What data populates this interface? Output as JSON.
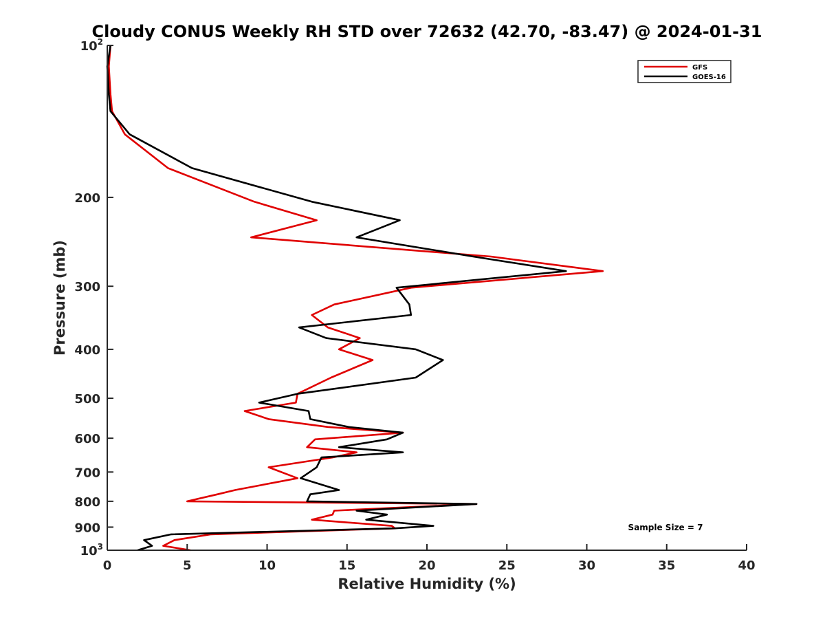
{
  "chart_data": {
    "type": "line",
    "title": "Cloudy CONUS Weekly RH STD over 72632 (42.70, -83.47) @ 2024-01-31",
    "xlabel": "Relative Humidity (%)",
    "ylabel": "Pressure (mb)",
    "xlim": [
      0,
      40
    ],
    "ylim": [
      100,
      1000
    ],
    "y_scale": "log",
    "y_reversed": true,
    "xticks": [
      0,
      5,
      10,
      15,
      20,
      25,
      30,
      35,
      40
    ],
    "yticks": [
      {
        "value": 100,
        "label": "10",
        "sup": "2"
      },
      {
        "value": 200,
        "label": "200"
      },
      {
        "value": 300,
        "label": "300"
      },
      {
        "value": 400,
        "label": "400"
      },
      {
        "value": 500,
        "label": "500"
      },
      {
        "value": 600,
        "label": "600"
      },
      {
        "value": 700,
        "label": "700"
      },
      {
        "value": 800,
        "label": "800"
      },
      {
        "value": 900,
        "label": "900"
      },
      {
        "value": 1000,
        "label": "10",
        "sup": "3"
      }
    ],
    "grid": false,
    "legend_position": "top-right",
    "annotation": "Sample Size = 7",
    "series": [
      {
        "name": "GFS",
        "color": "#e00000",
        "points": [
          [
            0.2,
            100
          ],
          [
            0.1,
            110
          ],
          [
            0.2,
            125
          ],
          [
            0.3,
            135
          ],
          [
            1.1,
            150
          ],
          [
            3.8,
            175
          ],
          [
            9.2,
            204
          ],
          [
            13.1,
            222
          ],
          [
            9.0,
            240
          ],
          [
            24.0,
            262
          ],
          [
            31.0,
            280
          ],
          [
            19.0,
            302
          ],
          [
            14.2,
            326
          ],
          [
            12.8,
            342
          ],
          [
            13.8,
            362
          ],
          [
            15.8,
            380
          ],
          [
            14.5,
            400
          ],
          [
            16.6,
            420
          ],
          [
            14.0,
            455
          ],
          [
            11.9,
            490
          ],
          [
            11.8,
            510
          ],
          [
            8.6,
            530
          ],
          [
            10.1,
            550
          ],
          [
            13.8,
            570
          ],
          [
            18.5,
            585
          ],
          [
            13.0,
            603
          ],
          [
            12.5,
            625
          ],
          [
            15.6,
            640
          ],
          [
            14.1,
            655
          ],
          [
            10.1,
            685
          ],
          [
            11.9,
            720
          ],
          [
            8.0,
            760
          ],
          [
            6.9,
            775
          ],
          [
            5.0,
            800
          ],
          [
            23.1,
            810
          ],
          [
            14.2,
            835
          ],
          [
            14.1,
            850
          ],
          [
            12.8,
            870
          ],
          [
            17.8,
            895
          ],
          [
            18.0,
            905
          ],
          [
            6.5,
            930
          ],
          [
            4.2,
            955
          ],
          [
            3.5,
            980
          ],
          [
            5.2,
            1000
          ]
        ]
      },
      {
        "name": "GOES-16",
        "color": "#000000",
        "points": [
          [
            0.2,
            100
          ],
          [
            0.0,
            110
          ],
          [
            0.1,
            125
          ],
          [
            0.2,
            135
          ],
          [
            1.4,
            150
          ],
          [
            5.3,
            175
          ],
          [
            12.8,
            204
          ],
          [
            18.3,
            222
          ],
          [
            15.6,
            240
          ],
          [
            22.9,
            262
          ],
          [
            28.7,
            280
          ],
          [
            18.1,
            302
          ],
          [
            18.9,
            326
          ],
          [
            19.0,
            342
          ],
          [
            12.0,
            362
          ],
          [
            13.7,
            380
          ],
          [
            19.3,
            400
          ],
          [
            21.0,
            420
          ],
          [
            19.3,
            455
          ],
          [
            11.9,
            490
          ],
          [
            9.5,
            510
          ],
          [
            12.6,
            530
          ],
          [
            12.7,
            550
          ],
          [
            15.1,
            570
          ],
          [
            18.5,
            585
          ],
          [
            17.5,
            603
          ],
          [
            14.5,
            625
          ],
          [
            18.5,
            640
          ],
          [
            13.4,
            655
          ],
          [
            13.1,
            685
          ],
          [
            12.1,
            720
          ],
          [
            14.5,
            760
          ],
          [
            12.7,
            775
          ],
          [
            12.5,
            800
          ],
          [
            23.1,
            810
          ],
          [
            15.6,
            835
          ],
          [
            17.5,
            850
          ],
          [
            16.2,
            870
          ],
          [
            20.4,
            895
          ],
          [
            18.0,
            905
          ],
          [
            4.0,
            930
          ],
          [
            2.3,
            955
          ],
          [
            2.8,
            980
          ],
          [
            1.9,
            1000
          ]
        ]
      }
    ]
  }
}
